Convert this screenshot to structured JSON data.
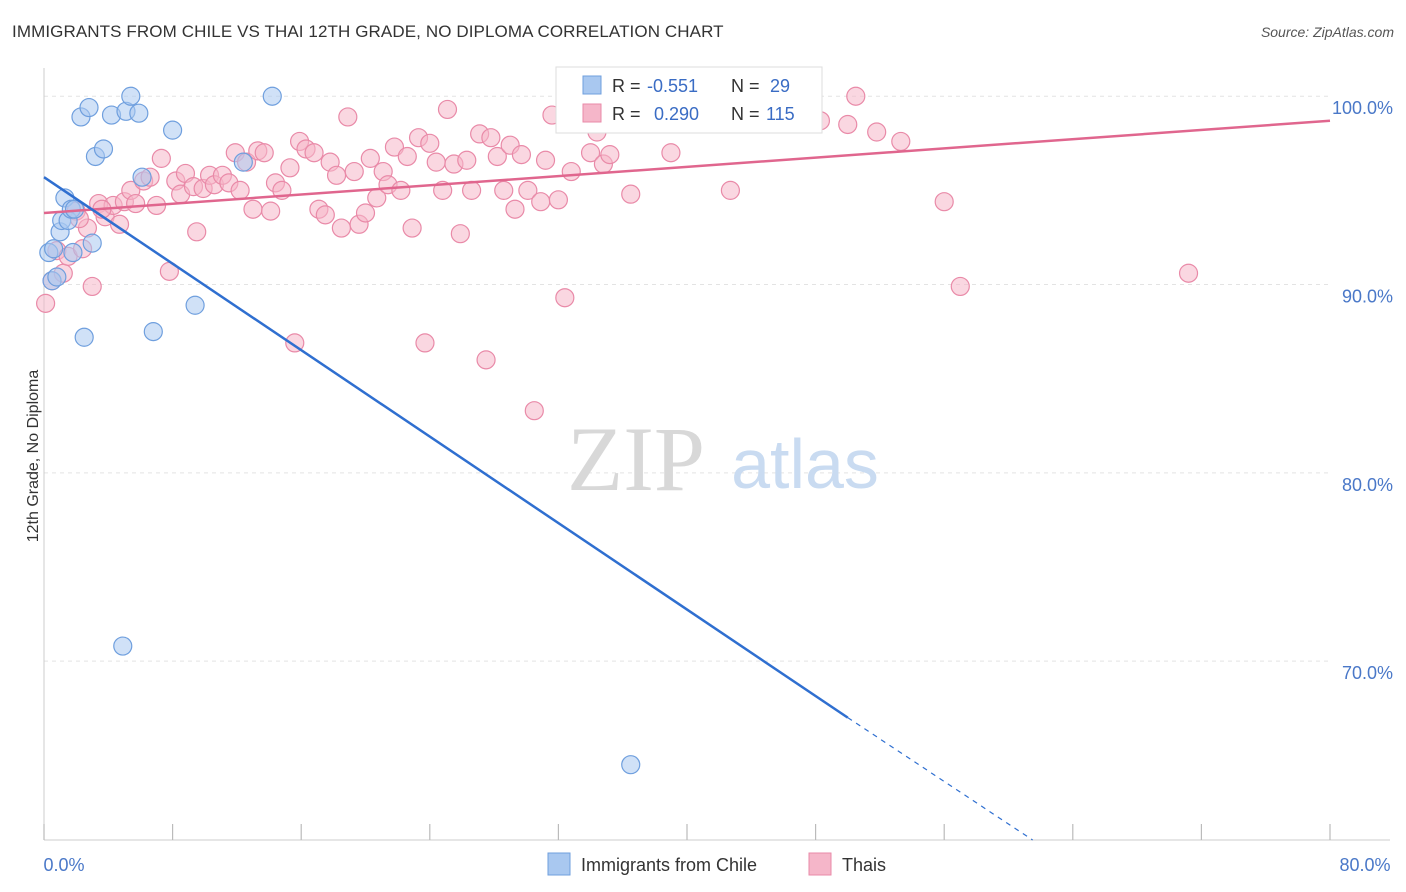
{
  "title": "IMMIGRANTS FROM CHILE VS THAI 12TH GRADE, NO DIPLOMA CORRELATION CHART",
  "source": "Source: ZipAtlas.com",
  "watermark": {
    "zip": "ZIP",
    "atlas": "atlas"
  },
  "colors": {
    "blue_fill": "#a9c8f0",
    "blue_stroke": "#6f9fde",
    "blue_line": "#2f6fd0",
    "pink_fill": "#f5b6c9",
    "pink_stroke": "#e98aa8",
    "pink_line": "#e0668e",
    "grid": "#e3e3e3",
    "axis_text": "#4a78c8"
  },
  "stats_box": {
    "rows": [
      {
        "r_label": "R =",
        "r_value": "-0.551",
        "n_label": "N =",
        "n_value": "29"
      },
      {
        "r_label": "R =",
        "r_value": "0.290",
        "n_label": "N =",
        "n_value": "115"
      }
    ]
  },
  "chart_data": {
    "type": "scatter",
    "title": "IMMIGRANTS FROM CHILE VS THAI 12TH GRADE, NO DIPLOMA CORRELATION CHART",
    "xlabel": "",
    "ylabel": "12th Grade, No Diploma",
    "xlim": [
      0,
      80
    ],
    "ylim": [
      60.5,
      101.5
    ],
    "x_tick_labels": [
      "0.0%",
      "80.0%"
    ],
    "y_ticks": [
      70,
      80,
      90,
      100
    ],
    "y_tick_labels": [
      "70.0%",
      "80.0%",
      "90.0%",
      "100.0%"
    ],
    "grid": true,
    "legend_position": "bottom-center",
    "series": [
      {
        "name": "Immigrants from Chile",
        "color": "#a9c8f0",
        "r": -0.551,
        "n": 29,
        "trend": {
          "x": [
            0,
            50
          ],
          "y": [
            95.7,
            67.0
          ],
          "dashed_to": [
            61.5,
            60.5
          ]
        },
        "points": [
          [
            0.3,
            91.7
          ],
          [
            0.5,
            90.2
          ],
          [
            0.6,
            91.9
          ],
          [
            1.0,
            92.8
          ],
          [
            1.1,
            93.4
          ],
          [
            1.3,
            94.6
          ],
          [
            1.5,
            93.4
          ],
          [
            1.7,
            94.0
          ],
          [
            1.8,
            91.7
          ],
          [
            2.3,
            98.9
          ],
          [
            2.5,
            87.2
          ],
          [
            2.8,
            99.4
          ],
          [
            3.0,
            92.2
          ],
          [
            3.2,
            96.8
          ],
          [
            3.7,
            97.2
          ],
          [
            4.2,
            99.0
          ],
          [
            4.9,
            70.8
          ],
          [
            5.1,
            99.2
          ],
          [
            5.4,
            100.0
          ],
          [
            5.9,
            99.1
          ],
          [
            6.1,
            95.7
          ],
          [
            6.8,
            87.5
          ],
          [
            8.0,
            98.2
          ],
          [
            9.4,
            88.9
          ],
          [
            12.4,
            96.5
          ],
          [
            14.2,
            100.0
          ],
          [
            36.5,
            64.5
          ],
          [
            1.9,
            94.0
          ],
          [
            0.8,
            90.4
          ]
        ]
      },
      {
        "name": "Thais",
        "color": "#f5b6c9",
        "r": 0.29,
        "n": 115,
        "trend": {
          "x": [
            0,
            80
          ],
          "y": [
            93.8,
            98.7
          ]
        },
        "points": [
          [
            0.1,
            89.0
          ],
          [
            0.5,
            90.2
          ],
          [
            0.8,
            91.8
          ],
          [
            1.2,
            90.6
          ],
          [
            1.5,
            91.5
          ],
          [
            2.0,
            93.9
          ],
          [
            2.4,
            91.9
          ],
          [
            2.7,
            93.0
          ],
          [
            3.0,
            89.9
          ],
          [
            3.4,
            94.3
          ],
          [
            3.8,
            93.6
          ],
          [
            4.3,
            94.2
          ],
          [
            4.7,
            93.2
          ],
          [
            5.0,
            94.4
          ],
          [
            5.4,
            95.0
          ],
          [
            5.7,
            94.3
          ],
          [
            6.2,
            95.5
          ],
          [
            6.6,
            95.7
          ],
          [
            7.0,
            94.2
          ],
          [
            7.3,
            96.7
          ],
          [
            7.8,
            90.7
          ],
          [
            8.2,
            95.5
          ],
          [
            8.5,
            94.8
          ],
          [
            8.8,
            95.9
          ],
          [
            9.3,
            95.2
          ],
          [
            9.5,
            92.8
          ],
          [
            9.9,
            95.1
          ],
          [
            10.3,
            95.8
          ],
          [
            10.6,
            95.3
          ],
          [
            11.1,
            95.8
          ],
          [
            11.5,
            95.4
          ],
          [
            11.9,
            97.0
          ],
          [
            12.2,
            95.0
          ],
          [
            12.6,
            96.5
          ],
          [
            13.0,
            94.0
          ],
          [
            13.3,
            97.1
          ],
          [
            13.7,
            97.0
          ],
          [
            14.1,
            93.9
          ],
          [
            14.4,
            95.4
          ],
          [
            14.8,
            95.0
          ],
          [
            15.3,
            96.2
          ],
          [
            15.6,
            86.9
          ],
          [
            15.9,
            97.6
          ],
          [
            16.3,
            97.2
          ],
          [
            16.8,
            97.0
          ],
          [
            17.1,
            94.0
          ],
          [
            17.5,
            93.7
          ],
          [
            17.8,
            96.5
          ],
          [
            18.2,
            95.8
          ],
          [
            18.5,
            93.0
          ],
          [
            18.9,
            98.9
          ],
          [
            19.3,
            96.0
          ],
          [
            19.6,
            93.2
          ],
          [
            20.0,
            93.8
          ],
          [
            20.3,
            96.7
          ],
          [
            20.7,
            94.6
          ],
          [
            21.1,
            96.0
          ],
          [
            21.4,
            95.3
          ],
          [
            21.8,
            97.3
          ],
          [
            22.2,
            95.0
          ],
          [
            22.6,
            96.8
          ],
          [
            22.9,
            93.0
          ],
          [
            23.3,
            97.8
          ],
          [
            23.7,
            86.9
          ],
          [
            24.0,
            97.5
          ],
          [
            24.4,
            96.5
          ],
          [
            24.8,
            95.0
          ],
          [
            25.1,
            99.3
          ],
          [
            25.5,
            96.4
          ],
          [
            25.9,
            92.7
          ],
          [
            26.3,
            96.6
          ],
          [
            26.6,
            95.0
          ],
          [
            27.1,
            98.0
          ],
          [
            27.5,
            86.0
          ],
          [
            27.8,
            97.8
          ],
          [
            28.2,
            96.8
          ],
          [
            28.6,
            95.0
          ],
          [
            29.0,
            97.4
          ],
          [
            29.3,
            94.0
          ],
          [
            29.7,
            96.9
          ],
          [
            30.1,
            95.0
          ],
          [
            30.5,
            83.3
          ],
          [
            30.9,
            94.4
          ],
          [
            31.2,
            96.6
          ],
          [
            31.6,
            99.0
          ],
          [
            32.0,
            94.5
          ],
          [
            32.4,
            89.3
          ],
          [
            32.8,
            96.0
          ],
          [
            33.2,
            99.2
          ],
          [
            33.6,
            100.0
          ],
          [
            34.0,
            97.0
          ],
          [
            34.4,
            98.1
          ],
          [
            34.8,
            96.4
          ],
          [
            35.2,
            96.9
          ],
          [
            35.8,
            99.3
          ],
          [
            36.5,
            94.8
          ],
          [
            37.4,
            99.2
          ],
          [
            38.2,
            98.7
          ],
          [
            39.0,
            97.0
          ],
          [
            40.0,
            99.4
          ],
          [
            41.3,
            99.1
          ],
          [
            42.7,
            95.0
          ],
          [
            44.0,
            98.6
          ],
          [
            45.5,
            99.2
          ],
          [
            47.2,
            99.6
          ],
          [
            48.3,
            98.7
          ],
          [
            50.0,
            98.5
          ],
          [
            50.5,
            100.0
          ],
          [
            51.8,
            98.1
          ],
          [
            53.3,
            97.6
          ],
          [
            56.0,
            94.4
          ],
          [
            57.0,
            89.9
          ],
          [
            71.2,
            90.6
          ],
          [
            2.2,
            93.5
          ],
          [
            3.6,
            94.0
          ]
        ]
      }
    ]
  },
  "legend": [
    {
      "label": "Immigrants from Chile"
    },
    {
      "label": "Thais"
    }
  ]
}
